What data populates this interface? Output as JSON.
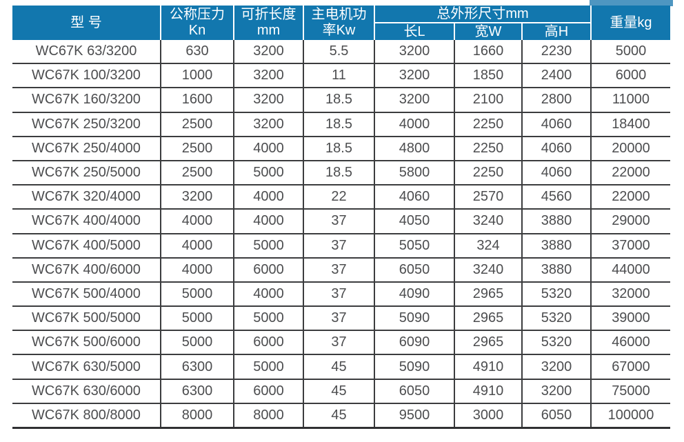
{
  "colors": {
    "header_bg": "#1277ae",
    "header_text": "#ffffff",
    "body_text": "#4c4d4f",
    "grid": "#3b3c3e",
    "top_right_strip": "#4e96c1"
  },
  "table": {
    "header": {
      "model": "型 号",
      "pressure_line1": "公称压力",
      "pressure_line2": "Kn",
      "length_line1": "可折长度",
      "length_line2": "mm",
      "power_line1": "主电机功",
      "power_line2": "率Kw",
      "dims_group": "总外形尺寸mm",
      "dim_length": "长L",
      "dim_width": "宽W",
      "dim_height": "高H",
      "weight": "重量kg"
    },
    "rows": [
      [
        "WC67K 63/3200",
        "630",
        "3200",
        "5.5",
        "3200",
        "1660",
        "2230",
        "5000"
      ],
      [
        "WC67K 100/3200",
        "1000",
        "3200",
        "11",
        "3200",
        "1850",
        "2400",
        "6000"
      ],
      [
        "WC67K 160/3200",
        "1600",
        "3200",
        "18.5",
        "3200",
        "2100",
        "2800",
        "11000"
      ],
      [
        "WC67K 250/3200",
        "2500",
        "3200",
        "18.5",
        "4000",
        "2250",
        "4060",
        "18400"
      ],
      [
        "WC67K 250/4000",
        "2500",
        "4000",
        "18.5",
        "4800",
        "2250",
        "4060",
        "20000"
      ],
      [
        "WC67K 250/5000",
        "2500",
        "5000",
        "18.5",
        "5800",
        "2250",
        "4060",
        "22000"
      ],
      [
        "WC67K 320/4000",
        "3200",
        "4000",
        "22",
        "4060",
        "2570",
        "4560",
        "22000"
      ],
      [
        "WC67K 400/4000",
        "4000",
        "4000",
        "37",
        "4050",
        "3240",
        "3880",
        "29000"
      ],
      [
        "WC67K 400/5000",
        "4000",
        "5000",
        "37",
        "5050",
        "324",
        "3880",
        "37000"
      ],
      [
        "WC67K 400/6000",
        "4000",
        "6000",
        "37",
        "6050",
        "3240",
        "3880",
        "44000"
      ],
      [
        "WC67K 500/4000",
        "5000",
        "4000",
        "37",
        "4090",
        "2965",
        "5320",
        "32000"
      ],
      [
        "WC67K 500/5000",
        "5000",
        "5000",
        "37",
        "5090",
        "2965",
        "5320",
        "39000"
      ],
      [
        "WC67K 500/6000",
        "5000",
        "6000",
        "37",
        "6090",
        "2965",
        "5320",
        "46000"
      ],
      [
        "WC67K 630/5000",
        "6300",
        "5000",
        "45",
        "5090",
        "4910",
        "3200",
        "67000"
      ],
      [
        "WC67K 630/6000",
        "6300",
        "6000",
        "45",
        "6050",
        "4910",
        "3200",
        "75000"
      ],
      [
        "WC67K 800/8000",
        "8000",
        "8000",
        "45",
        "9500",
        "3000",
        "6050",
        "100000"
      ]
    ]
  }
}
